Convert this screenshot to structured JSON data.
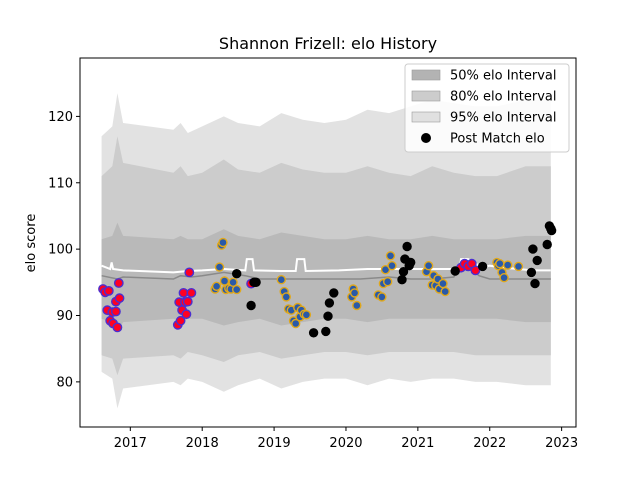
{
  "chart_data": {
    "type": "scatter",
    "title": "Shannon Frizell: elo History",
    "xlabel": "",
    "ylabel": "elo score",
    "xlim": [
      2016.3,
      2023.2
    ],
    "ylim": [
      73.2,
      128.8
    ],
    "x_ticks": [
      2017,
      2018,
      2019,
      2020,
      2021,
      2022,
      2023
    ],
    "x_tick_labels": [
      "2017",
      "2018",
      "2019",
      "2020",
      "2021",
      "2022",
      "2023"
    ],
    "y_ticks": [
      80,
      90,
      100,
      110,
      120
    ],
    "y_tick_labels": [
      "80",
      "90",
      "100",
      "110",
      "120"
    ],
    "grid": false,
    "legend_position": "top-right",
    "legend": [
      {
        "label": "50% elo Interval",
        "kind": "band",
        "color": "#b3b3b3"
      },
      {
        "label": "80% elo Interval",
        "kind": "band",
        "color": "#cccccc"
      },
      {
        "label": "95% elo Interval",
        "kind": "band",
        "color": "#e0e0e0"
      },
      {
        "label": "Post Match elo",
        "kind": "marker",
        "color": "#000000"
      }
    ],
    "colors": {
      "band95": "#e2e2e2",
      "band80": "#cccccc",
      "band50": "#b9b9b9",
      "median_line": "#8a8a8a",
      "mean_line": "#ffffff",
      "red_group": "#ff0022",
      "red_edge": "#4b2fd0",
      "blue_group": "#2a5aa8",
      "blue_edge": "#e0a81c",
      "black_group": "#000000"
    },
    "bands": {
      "x": [
        2016.6,
        2016.75,
        2016.82,
        2016.9,
        2017.6,
        2017.7,
        2017.8,
        2018.0,
        2018.3,
        2018.5,
        2018.8,
        2019.1,
        2019.4,
        2019.7,
        2020.0,
        2020.3,
        2020.6,
        2020.9,
        2021.2,
        2021.5,
        2021.8,
        2022.1,
        2022.5,
        2022.85
      ],
      "p95_low": [
        81.5,
        80.5,
        76.0,
        79.0,
        80.0,
        79.5,
        80.5,
        80.0,
        78.5,
        79.5,
        80.5,
        79.0,
        80.0,
        80.5,
        80.5,
        79.5,
        80.5,
        80.0,
        80.5,
        80.5,
        80.0,
        80.0,
        79.5,
        79.5
      ],
      "p80_low": [
        84.0,
        83.5,
        81.0,
        83.5,
        84.0,
        83.5,
        84.5,
        84.0,
        83.0,
        84.0,
        84.5,
        83.5,
        84.0,
        84.5,
        84.5,
        84.0,
        84.5,
        84.5,
        84.5,
        84.5,
        84.0,
        84.0,
        84.0,
        84.0
      ],
      "p50_low": [
        89.5,
        89.0,
        87.5,
        89.0,
        89.5,
        89.0,
        89.5,
        89.5,
        88.5,
        89.0,
        89.5,
        88.5,
        89.0,
        89.5,
        89.5,
        89.0,
        89.5,
        89.5,
        89.5,
        89.5,
        89.5,
        89.5,
        89.0,
        89.0
      ],
      "p50_high": [
        101.5,
        102.0,
        104.0,
        102.0,
        101.5,
        102.0,
        101.5,
        101.5,
        103.0,
        102.0,
        101.5,
        102.5,
        102.0,
        101.5,
        101.5,
        102.0,
        101.5,
        101.5,
        102.0,
        101.5,
        101.5,
        101.5,
        102.0,
        102.0
      ],
      "p80_high": [
        111.0,
        112.5,
        117.0,
        113.0,
        111.5,
        112.5,
        111.0,
        111.5,
        113.5,
        112.0,
        111.5,
        113.0,
        112.0,
        111.5,
        111.5,
        112.5,
        111.5,
        111.0,
        112.5,
        111.5,
        111.0,
        111.0,
        112.5,
        112.5
      ],
      "p95_high": [
        117.0,
        118.5,
        123.5,
        119.0,
        118.0,
        119.0,
        117.5,
        118.5,
        120.0,
        119.0,
        118.5,
        120.5,
        119.5,
        119.0,
        119.5,
        121.0,
        120.5,
        121.5,
        122.5,
        122.0,
        121.5,
        121.5,
        122.5,
        122.5
      ]
    },
    "median_line": {
      "x": [
        2016.6,
        2016.82,
        2016.9,
        2017.6,
        2017.7,
        2017.85,
        2018.0,
        2018.3,
        2018.6,
        2018.8,
        2019.1,
        2019.5,
        2019.9,
        2020.2,
        2020.6,
        2020.9,
        2021.2,
        2021.5,
        2021.6,
        2021.7,
        2021.85,
        2022.0,
        2022.3,
        2022.6,
        2022.85
      ],
      "y": [
        96.0,
        95.5,
        95.8,
        95.5,
        96.0,
        95.8,
        96.0,
        96.5,
        96.0,
        95.5,
        95.5,
        95.5,
        95.5,
        95.5,
        95.8,
        95.5,
        95.5,
        95.8,
        97.5,
        97.5,
        96.0,
        95.5,
        95.5,
        95.5,
        95.5
      ]
    },
    "mean_line": {
      "x": [
        2016.6,
        2016.72,
        2016.74,
        2016.76,
        2016.9,
        2017.6,
        2017.8,
        2018.0,
        2018.3,
        2018.6,
        2018.62,
        2018.7,
        2018.72,
        2019.1,
        2019.3,
        2019.32,
        2019.42,
        2019.44,
        2019.9,
        2020.3,
        2020.6,
        2020.9,
        2021.3,
        2021.58,
        2021.6,
        2021.7,
        2021.9,
        2022.0,
        2022.2,
        2022.6,
        2022.85
      ],
      "y": [
        97.5,
        97.0,
        98.0,
        97.0,
        96.8,
        96.5,
        96.7,
        96.8,
        97.0,
        96.8,
        98.5,
        98.5,
        96.8,
        96.7,
        96.7,
        98.5,
        98.5,
        96.7,
        96.8,
        97.0,
        97.0,
        97.0,
        97.0,
        97.0,
        98.5,
        98.5,
        97.2,
        97.5,
        97.2,
        96.8,
        96.8
      ]
    },
    "series": [
      {
        "group": "red",
        "points": [
          [
            2016.62,
            94.0
          ],
          [
            2016.65,
            93.5
          ],
          [
            2016.68,
            90.8
          ],
          [
            2016.7,
            93.7
          ],
          [
            2016.72,
            89.2
          ],
          [
            2016.75,
            90.5
          ],
          [
            2016.76,
            88.8
          ],
          [
            2016.8,
            90.6
          ],
          [
            2016.8,
            92.1
          ],
          [
            2016.82,
            88.2
          ],
          [
            2016.84,
            94.9
          ],
          [
            2016.85,
            92.6
          ],
          [
            2017.66,
            88.6
          ],
          [
            2017.68,
            92.0
          ],
          [
            2017.7,
            89.2
          ],
          [
            2017.72,
            90.8
          ],
          [
            2017.74,
            93.4
          ],
          [
            2017.76,
            92.0
          ],
          [
            2017.78,
            90.2
          ],
          [
            2017.8,
            92.1
          ],
          [
            2017.82,
            96.5
          ],
          [
            2017.85,
            93.4
          ],
          [
            2018.68,
            94.8
          ],
          [
            2021.6,
            97.2
          ],
          [
            2021.65,
            97.8
          ],
          [
            2021.7,
            97.4
          ],
          [
            2021.75,
            97.8
          ],
          [
            2021.8,
            96.8
          ]
        ]
      },
      {
        "group": "blue",
        "points": [
          [
            2018.18,
            94.0
          ],
          [
            2018.2,
            94.4
          ],
          [
            2018.24,
            97.3
          ],
          [
            2018.27,
            100.6
          ],
          [
            2018.29,
            101.0
          ],
          [
            2018.31,
            95.2
          ],
          [
            2018.33,
            93.9
          ],
          [
            2018.37,
            94.1
          ],
          [
            2018.4,
            94.0
          ],
          [
            2018.43,
            95.0
          ],
          [
            2018.48,
            93.9
          ],
          [
            2019.1,
            95.4
          ],
          [
            2019.14,
            93.6
          ],
          [
            2019.17,
            92.8
          ],
          [
            2019.2,
            91.0
          ],
          [
            2019.24,
            90.8
          ],
          [
            2019.27,
            89.2
          ],
          [
            2019.3,
            88.8
          ],
          [
            2019.33,
            91.2
          ],
          [
            2019.36,
            89.8
          ],
          [
            2019.38,
            90.8
          ],
          [
            2019.42,
            90.2
          ],
          [
            2019.45,
            90.1
          ],
          [
            2020.08,
            92.8
          ],
          [
            2020.1,
            94.0
          ],
          [
            2020.12,
            93.4
          ],
          [
            2020.15,
            91.5
          ],
          [
            2020.45,
            93.1
          ],
          [
            2020.5,
            92.8
          ],
          [
            2020.52,
            94.8
          ],
          [
            2020.55,
            96.9
          ],
          [
            2020.58,
            95.1
          ],
          [
            2020.62,
            99.0
          ],
          [
            2020.64,
            97.5
          ],
          [
            2021.12,
            96.6
          ],
          [
            2021.15,
            97.5
          ],
          [
            2021.2,
            94.6
          ],
          [
            2021.22,
            96.0
          ],
          [
            2021.25,
            94.5
          ],
          [
            2021.28,
            95.5
          ],
          [
            2021.3,
            94.0
          ],
          [
            2021.35,
            94.8
          ],
          [
            2021.38,
            93.6
          ],
          [
            2022.1,
            98.0
          ],
          [
            2022.12,
            97.5
          ],
          [
            2022.14,
            97.8
          ],
          [
            2022.17,
            96.5
          ],
          [
            2022.2,
            95.7
          ],
          [
            2022.25,
            97.6
          ],
          [
            2022.4,
            97.4
          ]
        ]
      },
      {
        "group": "black",
        "points": [
          [
            2018.48,
            96.3
          ],
          [
            2018.68,
            91.5
          ],
          [
            2018.72,
            95.0
          ],
          [
            2018.75,
            95.0
          ],
          [
            2019.55,
            87.4
          ],
          [
            2019.72,
            87.6
          ],
          [
            2019.75,
            89.9
          ],
          [
            2019.77,
            91.9
          ],
          [
            2019.83,
            93.4
          ],
          [
            2020.78,
            95.4
          ],
          [
            2020.8,
            96.6
          ],
          [
            2020.82,
            98.5
          ],
          [
            2020.85,
            100.4
          ],
          [
            2020.88,
            97.5
          ],
          [
            2020.9,
            98.0
          ],
          [
            2021.52,
            96.7
          ],
          [
            2021.9,
            97.4
          ],
          [
            2022.58,
            96.5
          ],
          [
            2022.6,
            100.0
          ],
          [
            2022.63,
            94.8
          ],
          [
            2022.66,
            98.3
          ],
          [
            2022.8,
            100.7
          ],
          [
            2022.83,
            103.5
          ],
          [
            2022.85,
            103.1
          ],
          [
            2022.86,
            102.8
          ]
        ]
      }
    ]
  }
}
